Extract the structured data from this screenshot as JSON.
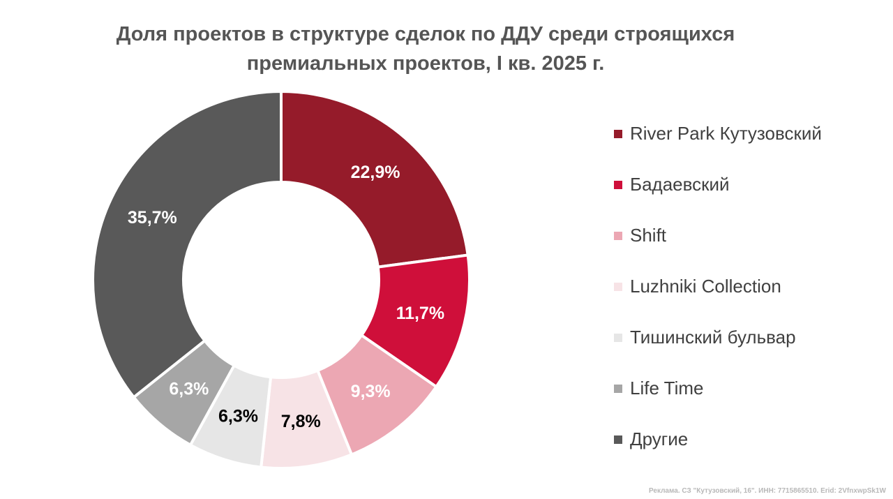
{
  "chart_data": {
    "type": "pie",
    "title_lines": [
      "Доля проектов в структуре сделок по ДДУ среди строящихся",
      "премиальных проектов, I кв. 2025 г."
    ],
    "categories": [
      "River Park Кутузовский",
      "Бадаевский",
      "Shift",
      "Luzhniki Collection",
      "Тишинский бульвар",
      "Life Time",
      "Другие"
    ],
    "values": [
      22.9,
      11.7,
      9.3,
      7.8,
      6.3,
      6.3,
      35.7
    ],
    "data_labels": [
      "22,9%",
      "11,7%",
      "9,3%",
      "7,8%",
      "6,3%",
      "6,3%",
      "35,7%"
    ],
    "colors": [
      "#951b2a",
      "#cf0f3a",
      "#eca7b3",
      "#f7e3e6",
      "#e6e6e6",
      "#a6a6a6",
      "#595959"
    ],
    "label_colors": [
      "#ffffff",
      "#ffffff",
      "#ffffff",
      "#000000",
      "#000000",
      "#ffffff",
      "#ffffff"
    ],
    "donut": true,
    "start_angle_deg": 0,
    "direction": "clockwise",
    "legend_position": "right"
  },
  "footnote": "Реклама. СЗ \"Кутузовский, 16\". ИНН: 7715865510. Erid: 2VfnxwpSk1W"
}
